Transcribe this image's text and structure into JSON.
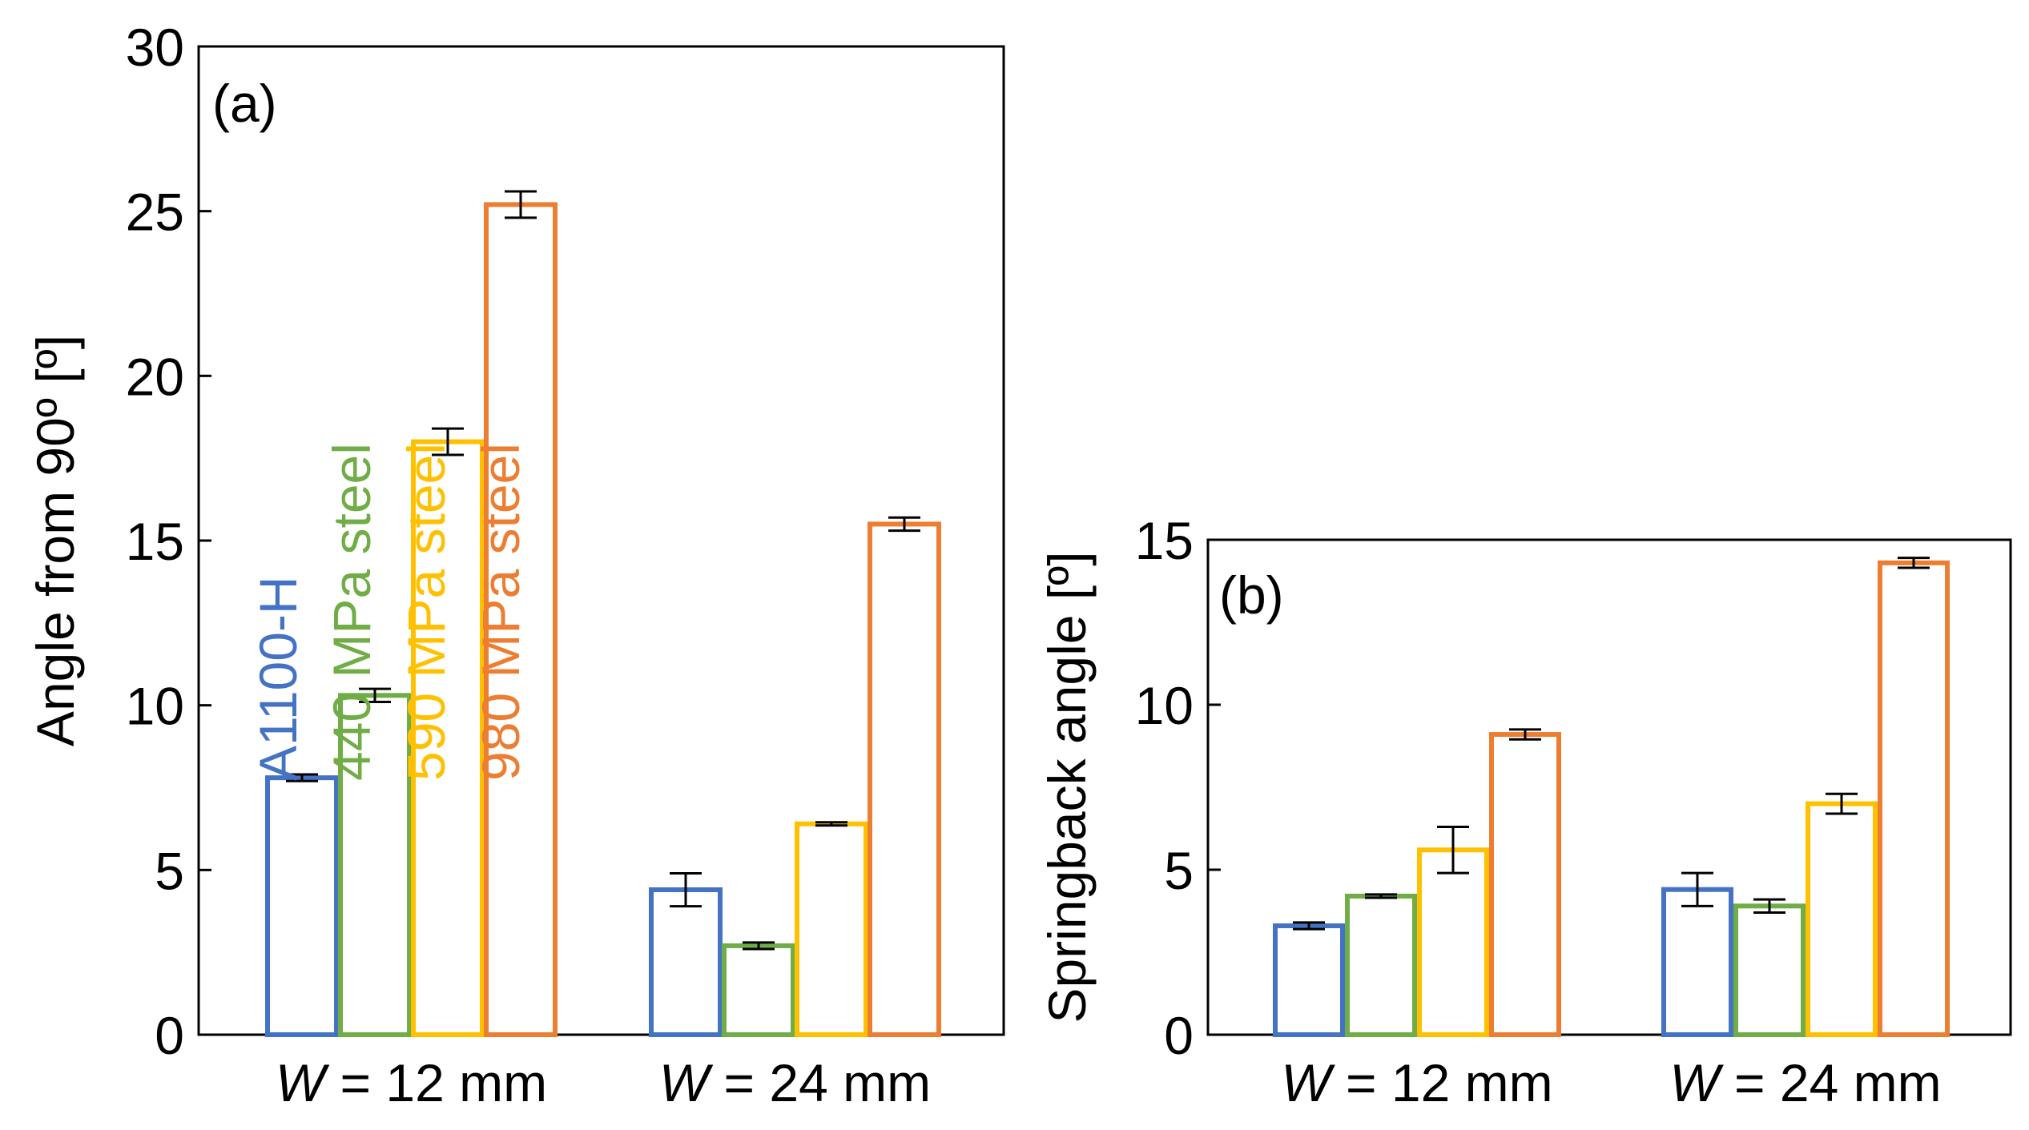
{
  "chart_data": [
    {
      "type": "bar",
      "panel_label": "(a)",
      "ylabel": "Angle from 90º [º]",
      "ylim": [
        0,
        30
      ],
      "yticks": [
        "0",
        "5",
        "10",
        "15",
        "20",
        "25",
        "30"
      ],
      "categories": [
        {
          "var": "W",
          "rest": " = 12 mm"
        },
        {
          "var": "W",
          "rest": " = 24 mm"
        }
      ],
      "series": [
        {
          "name": "A1100-H",
          "color": "#4472C4",
          "values": [
            7.8,
            4.4
          ],
          "errors": [
            0.1,
            0.5
          ]
        },
        {
          "name": "440 MPa steel",
          "color": "#70AD47",
          "values": [
            10.3,
            2.7
          ],
          "errors": [
            0.2,
            0.1
          ]
        },
        {
          "name": "590 MPa steel",
          "color": "#FFC000",
          "values": [
            18.0,
            6.4
          ],
          "errors": [
            0.4,
            0.05
          ]
        },
        {
          "name": "980 MPa steel",
          "color": "#ED7D31",
          "values": [
            25.2,
            15.5
          ],
          "errors": [
            0.4,
            0.2
          ]
        }
      ]
    },
    {
      "type": "bar",
      "panel_label": "(b)",
      "ylabel": "Springback angle [º]",
      "ylim": [
        0,
        15
      ],
      "yticks": [
        "0",
        "5",
        "10",
        "15"
      ],
      "categories": [
        {
          "var": "W",
          "rest": " = 12 mm"
        },
        {
          "var": "W",
          "rest": " = 24 mm"
        }
      ],
      "series": [
        {
          "name": "A1100-H",
          "color": "#4472C4",
          "values": [
            3.3,
            4.4
          ],
          "errors": [
            0.1,
            0.5
          ]
        },
        {
          "name": "440 MPa steel",
          "color": "#70AD47",
          "values": [
            4.2,
            3.9
          ],
          "errors": [
            0.05,
            0.2
          ]
        },
        {
          "name": "590 MPa steel",
          "color": "#FFC000",
          "values": [
            5.6,
            7.0
          ],
          "errors": [
            0.7,
            0.3
          ]
        },
        {
          "name": "980 MPa steel",
          "color": "#ED7D31",
          "values": [
            9.1,
            14.3
          ],
          "errors": [
            0.15,
            0.15
          ]
        }
      ]
    }
  ]
}
